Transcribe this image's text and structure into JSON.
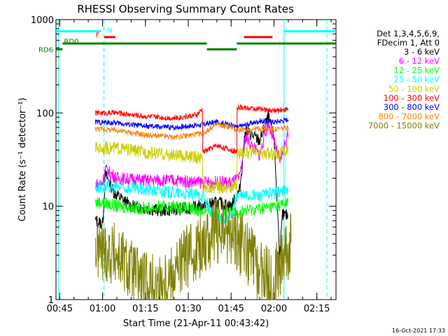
{
  "chart_data": {
    "type": "line",
    "title": "RHESSI Observing Summary Count Rates",
    "xlabel": "Start Time (21-Apr-11 00:43:42)",
    "ylabel": "Count Rate (s⁻¹ detector⁻¹)",
    "yscale": "log",
    "ylim": [
      1,
      1000
    ],
    "xlim": [
      "00:43:42",
      "02:21:42"
    ],
    "x_ticks": [
      "00:45",
      "01:00",
      "01:15",
      "01:30",
      "01:45",
      "02:00",
      "02:15"
    ],
    "y_ticks": [
      "1",
      "10",
      "100",
      "1000"
    ],
    "timestamp": "16-Oct-2021 17:33",
    "legend_header": [
      "Det 1,3,4,5,6,9,",
      "FDecim 1, Att 0"
    ],
    "series": [
      {
        "name": "3 - 6 keV",
        "color": "#000000",
        "points": [
          [
            "00:57:30",
            7
          ],
          [
            "01:00:00",
            6.5
          ],
          [
            "01:01:00",
            22
          ],
          [
            "01:04:00",
            14
          ],
          [
            "01:10:00",
            10
          ],
          [
            "01:20:00",
            9
          ],
          [
            "01:30:00",
            9.5
          ],
          [
            "01:35:00",
            10
          ],
          [
            "01:40:00",
            11
          ],
          [
            "01:45:00",
            10
          ],
          [
            "01:48:00",
            15
          ],
          [
            "01:50:00",
            65
          ],
          [
            "01:55:00",
            50
          ],
          [
            "01:58:00",
            90
          ],
          [
            "02:00:00",
            55
          ],
          [
            "02:02:00",
            3
          ],
          [
            "02:03:00",
            8
          ],
          [
            "02:05:00",
            8
          ]
        ]
      },
      {
        "name": "6 - 12 keV",
        "color": "#ff00ff",
        "points": [
          [
            "00:57:30",
            17
          ],
          [
            "01:00:00",
            18
          ],
          [
            "01:01:00",
            25
          ],
          [
            "01:05:00",
            20
          ],
          [
            "01:15:00",
            19
          ],
          [
            "01:25:00",
            19
          ],
          [
            "01:35:00",
            18
          ],
          [
            "01:45:00",
            18
          ],
          [
            "01:48:00",
            20
          ],
          [
            "01:50:00",
            55
          ],
          [
            "01:55:00",
            35
          ],
          [
            "01:58:00",
            80
          ],
          [
            "02:00:00",
            50
          ],
          [
            "02:02:00",
            30
          ],
          [
            "02:05:00",
            60
          ]
        ]
      },
      {
        "name": "12 - 25 keV",
        "color": "#00ff00",
        "points": [
          [
            "00:57:30",
            11
          ],
          [
            "01:00:00",
            11
          ],
          [
            "01:05:00",
            10
          ],
          [
            "01:15:00",
            9.5
          ],
          [
            "01:25:00",
            10
          ],
          [
            "01:35:00",
            9
          ],
          [
            "01:40:00",
            8.5
          ],
          [
            "01:45:00",
            8.5
          ],
          [
            "01:50:00",
            9
          ],
          [
            "02:00:00",
            10
          ],
          [
            "02:05:00",
            11
          ]
        ]
      },
      {
        "name": "25 - 50 keV",
        "color": "#00ffff",
        "points": [
          [
            "00:57:30",
            16
          ],
          [
            "01:05:00",
            16
          ],
          [
            "01:15:00",
            15
          ],
          [
            "01:25:00",
            14
          ],
          [
            "01:35:00",
            13
          ],
          [
            "01:40:00",
            7
          ],
          [
            "01:45:00",
            7.5
          ],
          [
            "01:47:00",
            13
          ],
          [
            "01:55:00",
            13
          ],
          [
            "02:00:00",
            14
          ],
          [
            "02:05:00",
            15
          ]
        ]
      },
      {
        "name": "50 - 100 keV",
        "color": "#cccc00",
        "points": [
          [
            "00:57:30",
            42
          ],
          [
            "01:05:00",
            42
          ],
          [
            "01:15:00",
            38
          ],
          [
            "01:25:00",
            35
          ],
          [
            "01:35:00",
            33
          ],
          [
            "01:35:05",
            16
          ],
          [
            "01:45:00",
            16
          ],
          [
            "01:47:00",
            17
          ],
          [
            "01:47:05",
            38
          ],
          [
            "01:55:00",
            37
          ],
          [
            "02:00:00",
            36
          ],
          [
            "02:05:00",
            40
          ]
        ]
      },
      {
        "name": "100 - 300 keV",
        "color": "#ff0000",
        "points": [
          [
            "00:57:30",
            100
          ],
          [
            "01:05:00",
            100
          ],
          [
            "01:15:00",
            92
          ],
          [
            "01:25:00",
            88
          ],
          [
            "01:33:00",
            95
          ],
          [
            "01:35:00",
            110
          ],
          [
            "01:35:05",
            38
          ],
          [
            "01:40:00",
            45
          ],
          [
            "01:45:00",
            40
          ],
          [
            "01:47:00",
            38
          ],
          [
            "01:47:05",
            115
          ],
          [
            "01:55:00",
            110
          ],
          [
            "02:00:00",
            105
          ],
          [
            "02:05:00",
            110
          ]
        ]
      },
      {
        "name": "300 - 800 keV",
        "color": "#0000ff",
        "points": [
          [
            "00:57:30",
            80
          ],
          [
            "01:05:00",
            78
          ],
          [
            "01:15:00",
            72
          ],
          [
            "01:25:00",
            70
          ],
          [
            "01:35:00",
            75
          ],
          [
            "01:40:00",
            80
          ],
          [
            "01:45:00",
            75
          ],
          [
            "01:47:00",
            70
          ],
          [
            "01:55:00",
            82
          ],
          [
            "02:00:00",
            80
          ],
          [
            "02:05:00",
            85
          ]
        ]
      },
      {
        "name": "800 - 7000 keV",
        "color": "#ff8000",
        "points": [
          [
            "00:57:30",
            68
          ],
          [
            "01:05:00",
            65
          ],
          [
            "01:15:00",
            58
          ],
          [
            "01:25:00",
            55
          ],
          [
            "01:35:00",
            60
          ],
          [
            "01:40:00",
            75
          ],
          [
            "01:45:00",
            70
          ],
          [
            "01:47:00",
            65
          ],
          [
            "01:55:00",
            68
          ],
          [
            "02:00:00",
            66
          ],
          [
            "02:05:00",
            70
          ]
        ]
      },
      {
        "name": "7000 - 15000 keV",
        "color": "#808000",
        "points": [
          [
            "00:57:30",
            3.5
          ],
          [
            "01:05:00",
            3
          ],
          [
            "01:10:00",
            2
          ],
          [
            "01:15:00",
            1.5
          ],
          [
            "01:20:00",
            1.4
          ],
          [
            "01:25:00",
            2
          ],
          [
            "01:30:00",
            3
          ],
          [
            "01:35:00",
            4
          ],
          [
            "01:40:00",
            5.5
          ],
          [
            "01:45:00",
            5
          ],
          [
            "01:50:00",
            3.5
          ],
          [
            "01:55:00",
            2
          ],
          [
            "02:00:00",
            1.5
          ],
          [
            "02:03:00",
            3
          ],
          [
            "02:06:00",
            4
          ]
        ]
      }
    ],
    "state_bars": [
      {
        "label": "N",
        "color": "#00ffff",
        "y": 750,
        "segments": [
          [
            "00:43:42",
            "00:59:30"
          ],
          [
            "02:03:30",
            "02:21:42"
          ]
        ]
      },
      {
        "label": "F",
        "color": "#ff0000",
        "y": 650,
        "segments": [
          [
            "01:00:30",
            "01:04:30"
          ],
          [
            "01:49:30",
            "01:59:30"
          ]
        ]
      },
      {
        "label": "RD0",
        "color": "#008000",
        "y": 555,
        "segments": [
          [
            "00:46:00",
            "01:36:30"
          ],
          [
            "01:47:00",
            "02:21:42"
          ]
        ]
      },
      {
        "label": "RD6",
        "color": "#008000",
        "y": 480,
        "segments": [
          [
            "00:43:42",
            "00:46:00"
          ],
          [
            "01:36:30",
            "01:47:00"
          ]
        ]
      }
    ],
    "vertical_lines": [
      {
        "time": "00:44:30",
        "color": "#00ffff",
        "style": "solid"
      },
      {
        "time": "01:00:30",
        "color": "#00ffff",
        "style": "dashed"
      },
      {
        "time": "02:03:30",
        "color": "#00ffff",
        "style": "solid"
      },
      {
        "time": "02:18:30",
        "color": "#00ffff",
        "style": "dashed"
      }
    ]
  }
}
